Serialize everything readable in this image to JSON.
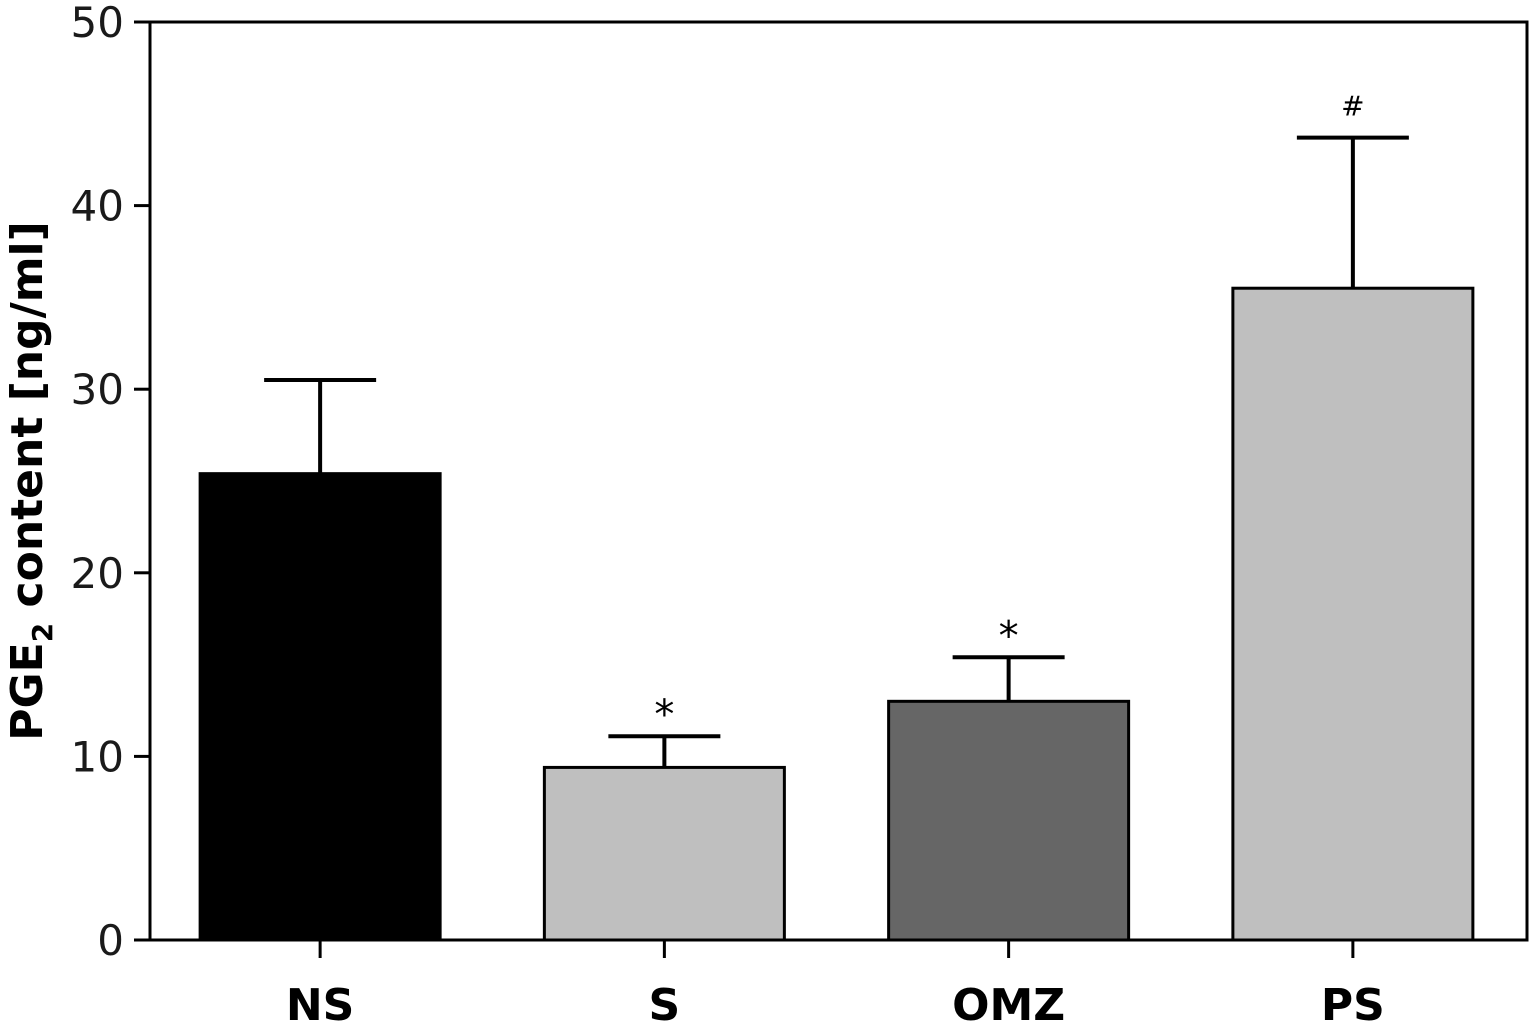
{
  "chart_data": {
    "type": "bar",
    "title": "",
    "xlabel": "",
    "ylabel_main": "PGE",
    "ylabel_sub": "2",
    "ylabel_rest": " content [ng/ml]",
    "ylim": [
      0,
      50
    ],
    "yticks": [
      0,
      10,
      20,
      30,
      40,
      50
    ],
    "categories": [
      "NS",
      "S",
      "OMZ",
      "PS"
    ],
    "values": [
      25.4,
      9.4,
      13.0,
      35.5
    ],
    "error_upper": [
      30.5,
      11.1,
      15.4,
      43.7
    ],
    "annotations": [
      "",
      "*",
      "*",
      "#"
    ],
    "colors": [
      "#000000",
      "#bfbfbf",
      "#666666",
      "#bfbfbf"
    ],
    "grid": false
  }
}
